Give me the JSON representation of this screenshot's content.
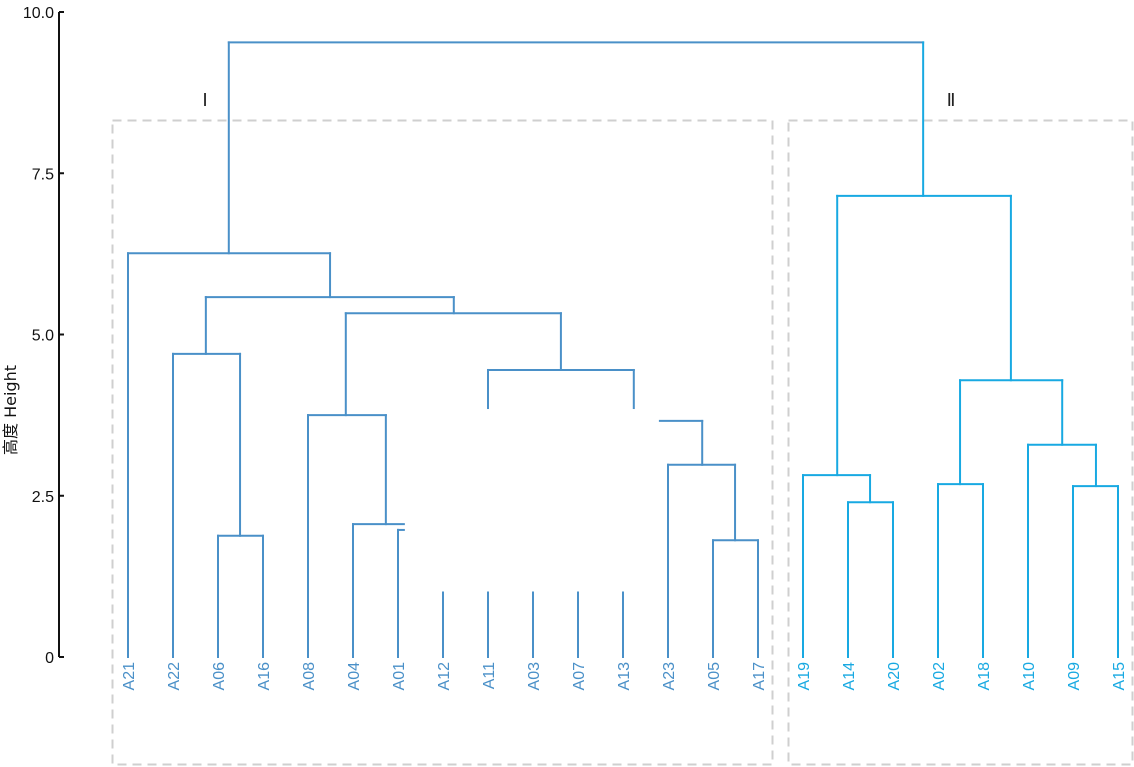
{
  "chart_data": {
    "type": "dendrogram",
    "title": "",
    "ylabel": "高度 Height",
    "xlabel": "",
    "ylim": [
      0,
      10
    ],
    "yticks": [
      0,
      2.5,
      5.0,
      7.5,
      10.0
    ],
    "ytick_labels": [
      "0",
      "2.5",
      "5.0",
      "7.5",
      "10.0"
    ],
    "grid": false,
    "leaves": [
      "A21",
      "A22",
      "A06",
      "A16",
      "A08",
      "A04",
      "A01",
      "A12",
      "A11",
      "A03",
      "A07",
      "A13",
      "A23",
      "A05",
      "A17",
      "A19",
      "A14",
      "A20",
      "A02",
      "A18",
      "A10",
      "A09",
      "A15"
    ],
    "leaf_cluster": [
      "I",
      "I",
      "I",
      "I",
      "I",
      "I",
      "I",
      "I",
      "I",
      "I",
      "I",
      "I",
      "I",
      "I",
      "I",
      "II",
      "II",
      "II",
      "II",
      "II",
      "II",
      "II",
      "II"
    ],
    "clusters": [
      {
        "name": "I",
        "label": "Ⅰ",
        "color": "#4a90c8",
        "leaf_range": [
          0,
          14
        ]
      },
      {
        "name": "II",
        "label": "Ⅱ",
        "color": "#18a9e2",
        "leaf_range": [
          15,
          22
        ]
      }
    ],
    "segments_note": "each segment is [x1, h1, x2, h2] in leaf-index units and height units",
    "segments": {
      "I": [
        [
          2.24,
          9.53,
          17.67,
          9.53
        ],
        [
          2.24,
          9.53,
          2.24,
          6.26
        ],
        [
          0,
          6.26,
          4.49,
          6.26
        ],
        [
          0,
          6.26,
          0,
          0
        ],
        [
          4.49,
          6.26,
          4.49,
          5.58
        ],
        [
          1.73,
          5.58,
          7.24,
          5.58
        ],
        [
          1.73,
          5.58,
          1.73,
          4.7
        ],
        [
          1,
          4.7,
          2.49,
          4.7
        ],
        [
          1,
          4.7,
          1,
          0
        ],
        [
          2.49,
          4.7,
          2.49,
          1.88
        ],
        [
          2,
          1.88,
          3,
          1.88
        ],
        [
          2,
          1.88,
          2,
          0
        ],
        [
          3,
          1.88,
          3,
          0
        ],
        [
          7.24,
          5.58,
          7.24,
          5.33
        ],
        [
          4.84,
          5.33,
          9.62,
          5.33
        ],
        [
          4.84,
          5.33,
          4.84,
          3.75
        ],
        [
          4,
          3.75,
          5.73,
          3.75
        ],
        [
          4,
          3.75,
          4,
          0
        ],
        [
          5.73,
          3.75,
          5.73,
          2.06
        ],
        [
          5,
          2.06,
          6.13,
          2.06
        ],
        [
          5,
          2.06,
          5,
          0
        ],
        [
          6,
          1.97,
          6.13,
          1.97
        ],
        [
          6,
          1.97,
          6,
          0
        ],
        [
          9.62,
          5.33,
          9.62,
          4.45
        ],
        [
          8,
          4.45,
          11.24,
          4.45
        ],
        [
          8,
          4.45,
          8,
          3.86
        ],
        [
          11.24,
          4.45,
          11.24,
          3.86
        ],
        [
          7,
          1.0,
          7,
          0
        ],
        [
          8,
          1.0,
          8,
          0
        ],
        [
          9,
          1.0,
          9,
          0
        ],
        [
          10,
          1.0,
          10,
          0
        ],
        [
          11,
          1.0,
          11,
          0
        ],
        [
          11.82,
          3.66,
          12.76,
          3.66
        ],
        [
          12.76,
          3.66,
          12.76,
          2.98
        ],
        [
          12,
          2.98,
          13.49,
          2.98
        ],
        [
          12,
          2.98,
          12,
          0
        ],
        [
          13.49,
          2.98,
          13.49,
          1.81
        ],
        [
          13,
          1.81,
          14,
          1.81
        ],
        [
          13,
          1.81,
          13,
          0
        ],
        [
          14,
          1.81,
          14,
          0
        ]
      ],
      "II": [
        [
          17.67,
          9.53,
          17.67,
          7.15
        ],
        [
          15.76,
          7.15,
          19.62,
          7.15
        ],
        [
          15.76,
          7.15,
          15.76,
          2.82
        ],
        [
          15,
          2.82,
          16.49,
          2.82
        ],
        [
          15,
          2.82,
          15,
          0
        ],
        [
          16.49,
          2.82,
          16.49,
          2.4
        ],
        [
          16,
          2.4,
          17,
          2.4
        ],
        [
          16,
          2.4,
          16,
          0
        ],
        [
          17,
          2.4,
          17,
          0
        ],
        [
          19.62,
          7.15,
          19.62,
          4.29
        ],
        [
          18.49,
          4.29,
          20.76,
          4.29
        ],
        [
          18.49,
          4.29,
          18.49,
          2.68
        ],
        [
          18,
          2.68,
          19,
          2.68
        ],
        [
          18,
          2.68,
          18,
          0
        ],
        [
          19,
          2.68,
          19,
          0
        ],
        [
          20.76,
          4.29,
          20.76,
          3.29
        ],
        [
          20,
          3.29,
          21.51,
          3.29
        ],
        [
          20,
          3.29,
          20,
          0
        ],
        [
          21.51,
          3.29,
          21.51,
          2.65
        ],
        [
          21,
          2.65,
          22,
          2.65
        ],
        [
          21,
          2.65,
          21,
          0
        ],
        [
          22,
          2.65,
          22,
          0
        ]
      ]
    }
  }
}
